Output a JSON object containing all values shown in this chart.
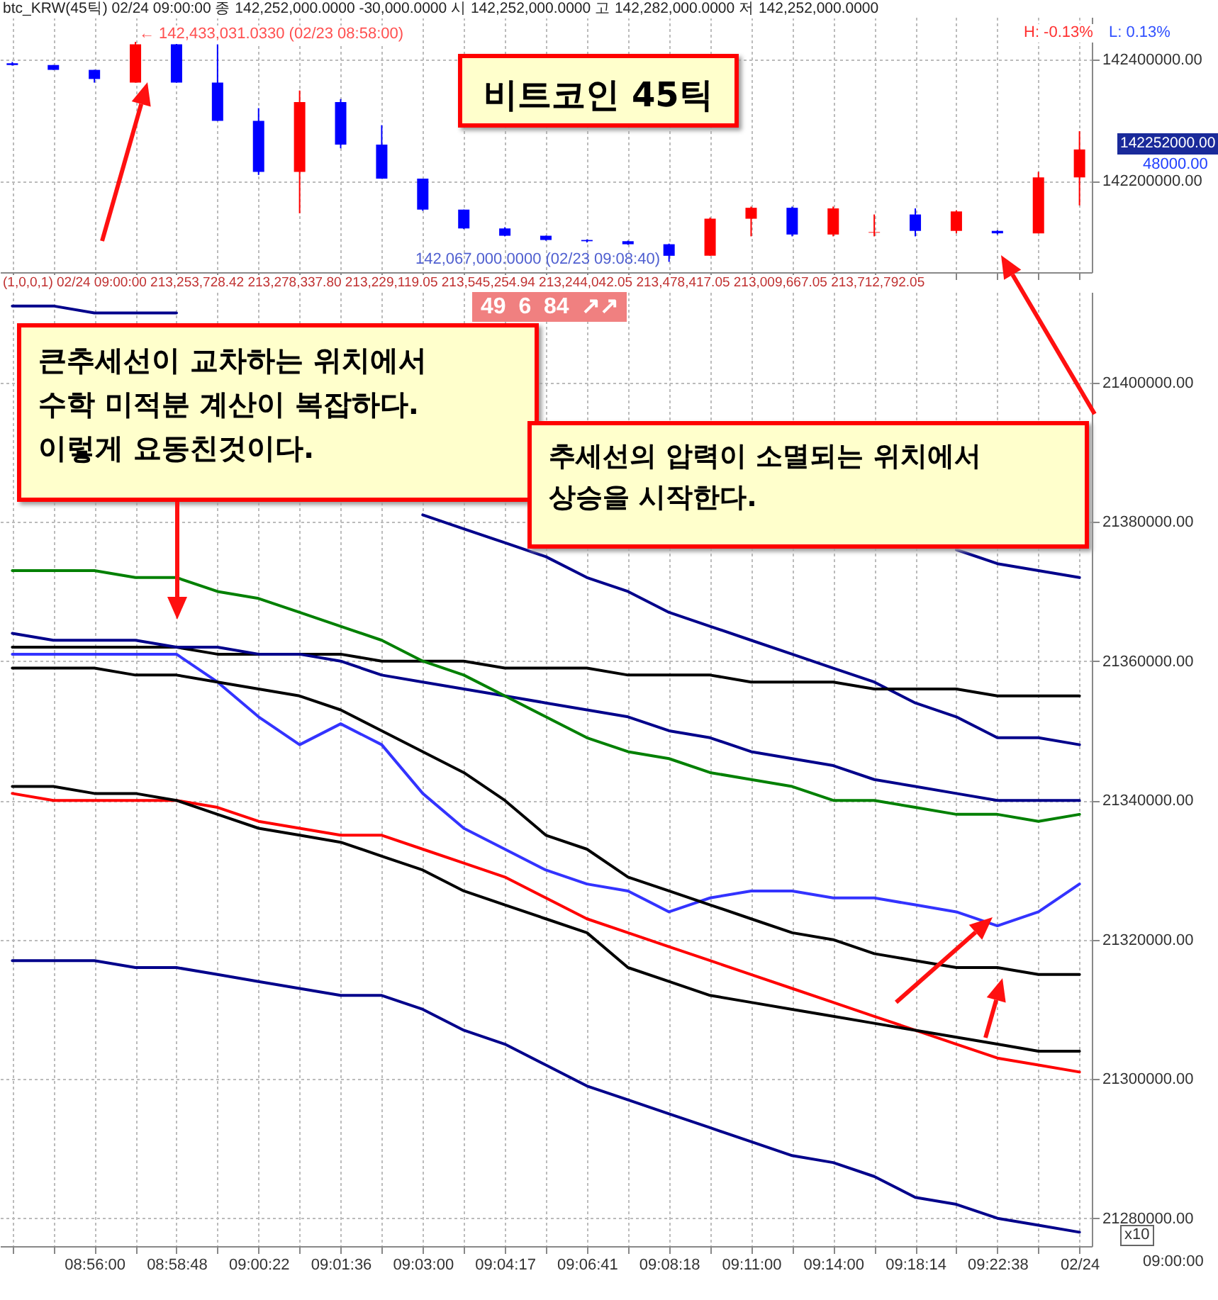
{
  "chart_data": [
    {
      "type": "candlestick",
      "tick_labels": "y",
      "grid": true,
      "ohlc": [
        [
          142394000,
          142396000,
          142390000,
          142391000
        ],
        [
          142391000,
          142391000,
          142383000,
          142383000
        ],
        [
          142383000,
          142383000,
          142362000,
          142368000
        ],
        [
          142362000,
          142429000,
          142362000,
          142425000
        ],
        [
          142425000,
          142433031,
          142362000,
          142362000
        ],
        [
          142362000,
          142425000,
          142299000,
          142299000
        ],
        [
          142299000,
          142320000,
          142210000,
          142215000
        ],
        [
          142215000,
          142349000,
          142147000,
          142330000
        ],
        [
          142330000,
          142335000,
          142254000,
          142260000
        ],
        [
          142260000,
          142292000,
          142204000,
          142204000
        ],
        [
          142204000,
          142204000,
          142151000,
          142153000
        ],
        [
          142153000,
          142153000,
          142121000,
          142122000
        ],
        [
          142122000,
          142124000,
          142109000,
          142110000
        ],
        [
          142110000,
          142110000,
          142102000,
          142103000
        ],
        [
          142103000,
          142104000,
          142099000,
          142101000
        ],
        [
          142101000,
          142102000,
          142095000,
          142096000
        ],
        [
          142096000,
          142097000,
          142067000,
          142077000
        ],
        [
          142077000,
          142140000,
          142077000,
          142138000
        ],
        [
          142138000,
          142158000,
          142109000,
          142156000
        ],
        [
          142156000,
          142158000,
          142109000,
          142112000
        ],
        [
          142112000,
          142158000,
          142109000,
          142155000
        ],
        [
          142115000,
          142145000,
          142109000,
          142116000
        ],
        [
          142145000,
          142155000,
          142109000,
          142118000
        ],
        [
          142118000,
          142152000,
          142114000,
          142150000
        ],
        [
          142118000,
          142119000,
          142112000,
          142114000
        ],
        [
          142114000,
          142215000,
          142114000,
          142206000
        ],
        [
          142206000,
          142282000,
          142160000,
          142252000
        ]
      ],
      "colors": [
        "#0000ff",
        "#0000ff",
        "#0000ff",
        "#ff0000",
        "#0000ff",
        "#0000ff",
        "#0000ff",
        "#ff0000",
        "#0000ff",
        "#0000ff",
        "#0000ff",
        "#0000ff",
        "#0000ff",
        "#0000ff",
        "#0000ff",
        "#0000ff",
        "#0000ff",
        "#ff0000",
        "#ff0000",
        "#0000ff",
        "#ff0000",
        "#ff0000",
        "#0000ff",
        "#ff0000",
        "#0000ff",
        "#ff0000",
        "#ff0000"
      ],
      "ylim": [
        142050000,
        142470000
      ],
      "yticks": [
        {
          "value": 142200000,
          "label": "142200000.00"
        },
        {
          "value": 142400000,
          "label": "142400000.00"
        }
      ],
      "annotations": [
        "btc_KRW(45틱) 02/24 09:00:00 종 142,252,000.0000 -30,000.0000 시 142,252,000.0000 고 142,282,000.0000 저 142,252,000.0000",
        "H: -0.13%",
        "L: 0.13%",
        "← 142,433,031.0330 (02/23 08:58:00)",
        "142,067,000.0000 (02/23 09:08:40)",
        "비트코인 45틱",
        "142252000.00",
        "48000.00"
      ]
    },
    {
      "type": "line",
      "grid": true,
      "categories": [
        null,
        null,
        "08:56:00",
        null,
        "08:58:48",
        null,
        "09:00:22",
        null,
        "09:01:36",
        null,
        "09:03:00",
        null,
        "09:04:17",
        null,
        "09:06:41",
        null,
        "09:08:18",
        null,
        "09:11:00",
        null,
        "09:14:00",
        null,
        "09:18:14",
        null,
        "09:22:38",
        null,
        "02/24"
      ],
      "ylim": [
        21276000,
        21413000
      ],
      "yticks": [
        {
          "value": 21280000,
          "label": "21280000.00"
        },
        {
          "value": 21300000,
          "label": "21300000.00"
        },
        {
          "value": 21320000,
          "label": "21320000.00"
        },
        {
          "value": 21340000,
          "label": "21340000.00"
        },
        {
          "value": 21360000,
          "label": "21360000.00"
        },
        {
          "value": 21380000,
          "label": "21380000.00"
        },
        {
          "value": 21400000,
          "label": "21400000.00"
        }
      ],
      "series": [
        {
          "color": "#00008b",
          "values": [
            21411000,
            21411000,
            21410000,
            21410000,
            21410000,
            null,
            null,
            null,
            null,
            null,
            null,
            null,
            null,
            null,
            null,
            null,
            null,
            null,
            null,
            null,
            null,
            null,
            null,
            21376000,
            21374000,
            21373000,
            21372000
          ]
        },
        {
          "color": "#00008b",
          "values": [
            null,
            null,
            null,
            null,
            null,
            null,
            null,
            null,
            null,
            null,
            21381000,
            21379000,
            21377000,
            21375000,
            21372000,
            21370000,
            21367000,
            21365000,
            21363000,
            21361000,
            21359000,
            21357000,
            21354000,
            21352000,
            21349000,
            21349000,
            21348000
          ]
        },
        {
          "color": "#000000",
          "values": [
            21362000,
            21362000,
            21362000,
            21362000,
            21362000,
            21361000,
            21361000,
            21361000,
            21361000,
            21360000,
            21360000,
            21360000,
            21359000,
            21359000,
            21359000,
            21358000,
            21358000,
            21358000,
            21357000,
            21357000,
            21357000,
            21356000,
            21356000,
            21356000,
            21355000,
            21355000,
            21355000
          ]
        },
        {
          "color": "#00008b",
          "values": [
            21364000,
            21363000,
            21363000,
            21363000,
            21362000,
            21362000,
            21361000,
            21361000,
            21360000,
            21358000,
            21357000,
            21356000,
            21355000,
            21354000,
            21353000,
            21352000,
            21350000,
            21349000,
            21347000,
            21346000,
            21345000,
            21343000,
            21342000,
            21341000,
            21340000,
            21340000,
            21340000
          ]
        },
        {
          "color": "#008000",
          "values": [
            21373000,
            21373000,
            21373000,
            21372000,
            21372000,
            21370000,
            21369000,
            21367000,
            21365000,
            21363000,
            21360000,
            21358000,
            21355000,
            21352000,
            21349000,
            21347000,
            21346000,
            21344000,
            21343000,
            21342000,
            21340000,
            21340000,
            21339000,
            21338000,
            21338000,
            21337000,
            21338000
          ]
        },
        {
          "color": "#3333ff",
          "values": [
            21361000,
            21361000,
            21361000,
            21361000,
            21361000,
            21357000,
            21352000,
            21348000,
            21351000,
            21348000,
            21341000,
            21336000,
            21333000,
            21330000,
            21328000,
            21327000,
            21324000,
            21326000,
            21327000,
            21327000,
            21326000,
            21326000,
            21325000,
            21324000,
            21322000,
            21324000,
            21328000
          ]
        },
        {
          "color": "#000000",
          "values": [
            21359000,
            21359000,
            21359000,
            21358000,
            21358000,
            21357000,
            21356000,
            21355000,
            21353000,
            21350000,
            21347000,
            21344000,
            21340000,
            21335000,
            21333000,
            21329000,
            21327000,
            21325000,
            21323000,
            21321000,
            21320000,
            21318000,
            21317000,
            21316000,
            21316000,
            21315000,
            21315000
          ]
        },
        {
          "color": "#ff0000",
          "values": [
            21341000,
            21340000,
            21340000,
            21340000,
            21340000,
            21339000,
            21337000,
            21336000,
            21335000,
            21335000,
            21333000,
            21331000,
            21329000,
            21326000,
            21323000,
            21321000,
            21319000,
            21317000,
            21315000,
            21313000,
            21311000,
            21309000,
            21307000,
            21305000,
            21303000,
            21302000,
            21301000
          ]
        },
        {
          "color": "#000000",
          "values": [
            21342000,
            21342000,
            21341000,
            21341000,
            21340000,
            21338000,
            21336000,
            21335000,
            21334000,
            21332000,
            21330000,
            21327000,
            21325000,
            21323000,
            21321000,
            21316000,
            21314000,
            21312000,
            21311000,
            21310000,
            21309000,
            21308000,
            21307000,
            21306000,
            21305000,
            21304000,
            21304000
          ]
        },
        {
          "color": "#00008b",
          "values": [
            21317000,
            21317000,
            21317000,
            21316000,
            21316000,
            21315000,
            21314000,
            21313000,
            21312000,
            21312000,
            21310000,
            21307000,
            21305000,
            21302000,
            21299000,
            21297000,
            21295000,
            21293000,
            21291000,
            21289000,
            21288000,
            21286000,
            21283000,
            21282000,
            21280000,
            21279000,
            21278000
          ]
        }
      ],
      "annotations": [
        "(1,0,0,1) 02/24 09:00:00 213,253,728.42 213,278,337.80 213,229,119.05 213,545,254.94 213,244,042.05 213,478,417.05 213,009,667.05 213,712,792.05",
        "49  6  84  ↗↗",
        "큰추세선이 교차하는 위치에서\n수학 미적분 계산이 복잡하다.\n이렇게 요동친것이다.",
        "추세선의 압력이 소멸되는 위치에서\n상승을 시작한다.",
        "x10",
        "09:00:00"
      ]
    }
  ]
}
